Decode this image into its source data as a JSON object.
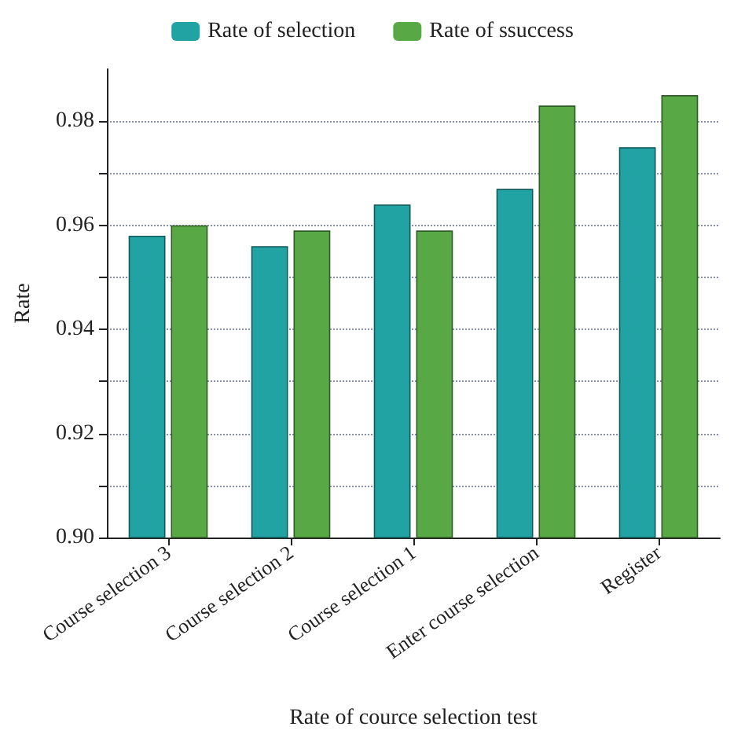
{
  "chart_data": {
    "type": "bar",
    "xlabel": "Rate of cource selection test",
    "ylabel": "Rate",
    "categories": [
      "Course selection 3",
      "Course selection 2",
      "Course selection 1",
      "Enter course selection",
      "Register"
    ],
    "series": [
      {
        "name": "Rate of selection",
        "color": "#22a3a3",
        "values": [
          0.958,
          0.956,
          0.964,
          0.967,
          0.975
        ]
      },
      {
        "name": "Rate of ssuccess",
        "color": "#58a845",
        "values": [
          0.96,
          0.959,
          0.959,
          0.983,
          0.985
        ]
      }
    ],
    "ylim": [
      0.9,
      0.99
    ],
    "yticks": [
      {
        "value": 0.9,
        "label": "0.90"
      },
      {
        "value": 0.91,
        "label": null
      },
      0.92,
      {
        "value": 0.93,
        "label": null
      },
      0.94,
      {
        "value": 0.95,
        "label": null
      },
      0.96,
      {
        "value": 0.97,
        "label": null
      },
      0.98
    ],
    "grid": "y",
    "legend": "top"
  }
}
